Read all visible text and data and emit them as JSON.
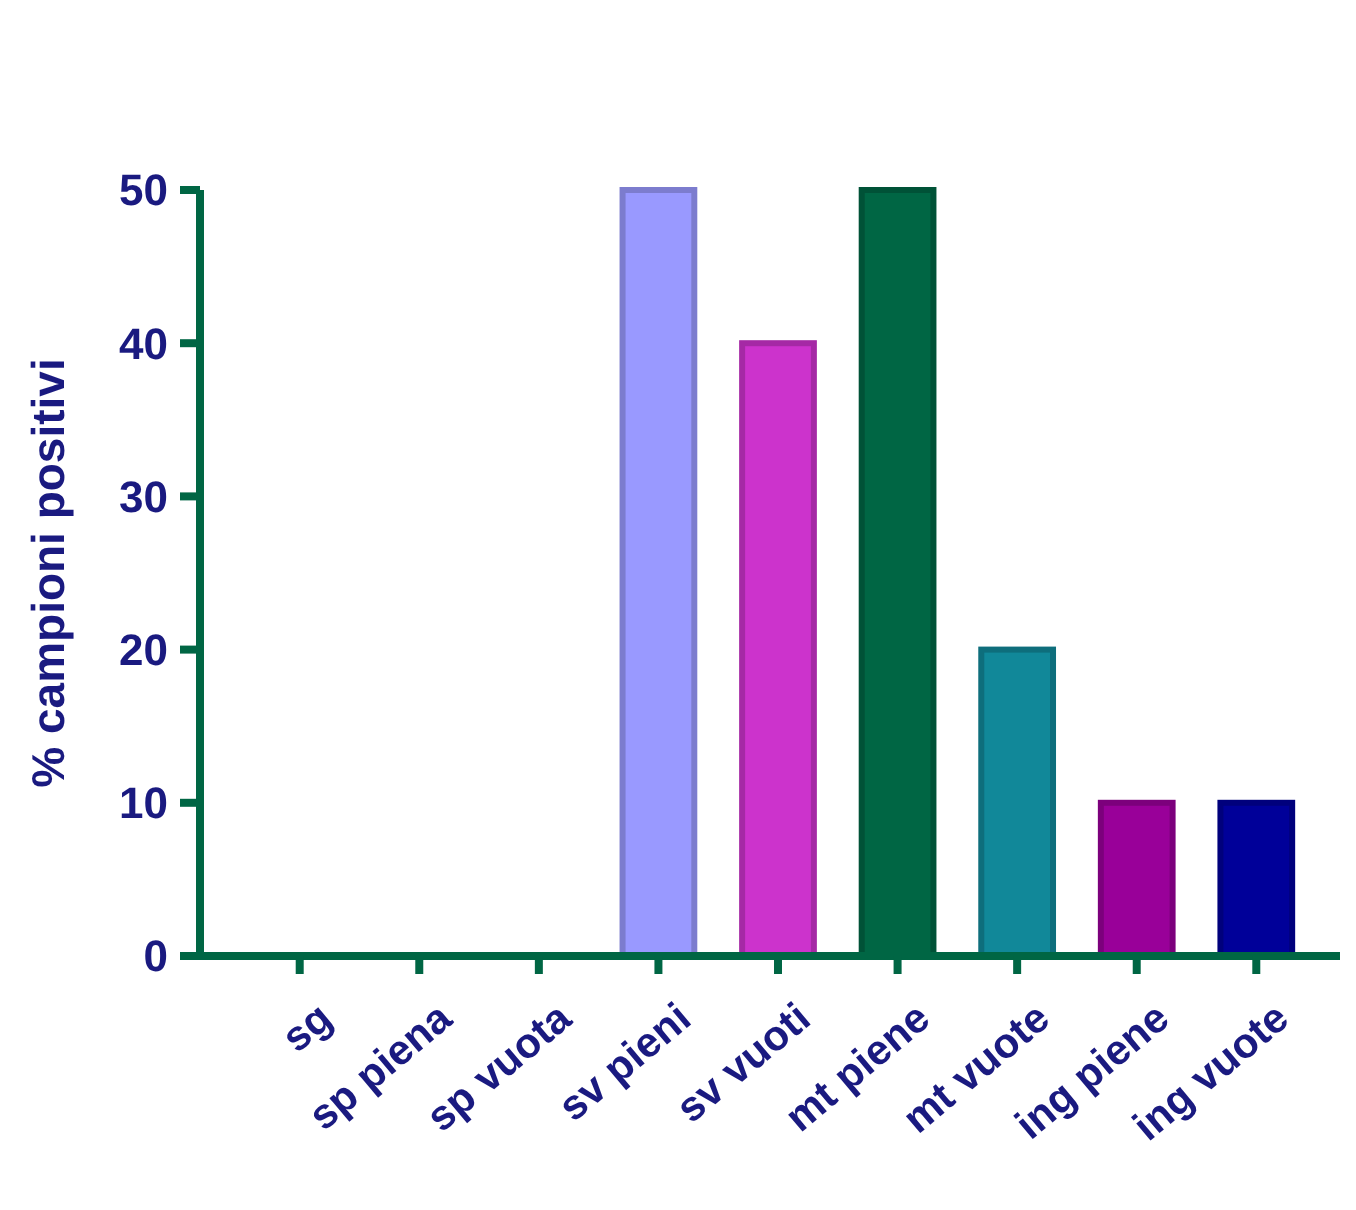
{
  "chart_data": {
    "type": "bar",
    "ylabel": "% campioni positivi",
    "categories": [
      "sg",
      "sp piena",
      "sp vuota",
      "sv pieni",
      "sv vuoti",
      "mt piene",
      "mt vuote",
      "ing piene",
      "ing vuote"
    ],
    "values": [
      0,
      0,
      0,
      50,
      40,
      50,
      20,
      10,
      10
    ],
    "colors": [
      "#1a1a80",
      "#1a1a80",
      "#1a1a80",
      "#9999ff",
      "#cc33cc",
      "#006644",
      "#118899",
      "#990099",
      "#000099"
    ],
    "ylim": [
      0,
      50
    ],
    "yticks": [
      0,
      10,
      20,
      30,
      40,
      50
    ],
    "grid": false
  }
}
